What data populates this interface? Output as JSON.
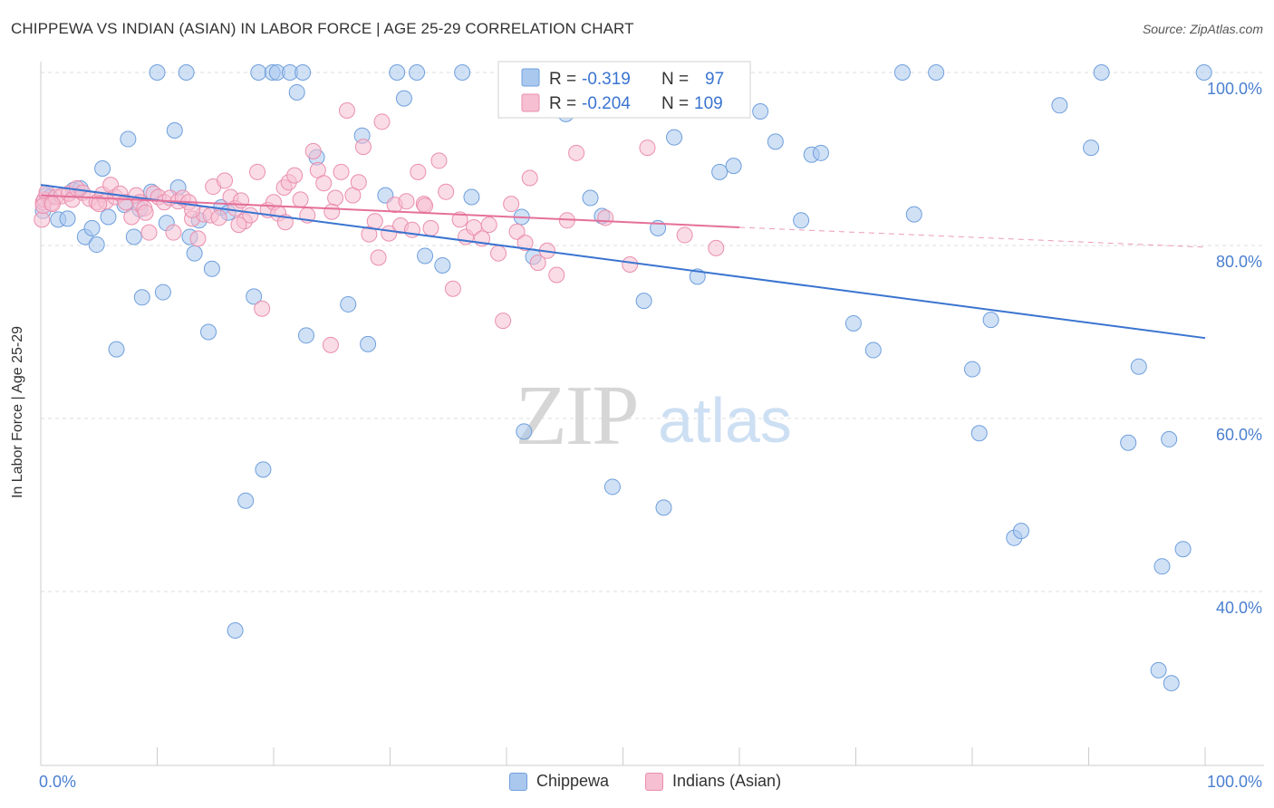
{
  "header": {
    "title": "CHIPPEWA VS INDIAN (ASIAN) IN LABOR FORCE | AGE 25-29 CORRELATION CHART",
    "source": "Source: ZipAtlas.com"
  },
  "watermark": {
    "zip": "ZIP",
    "atlas": "atlas"
  },
  "colors": {
    "blue_fill": "#aac8ee",
    "blue_stroke": "#6f9fdc",
    "blue_line": "#3a74d0",
    "pink_fill": "#f6bfd2",
    "pink_stroke": "#ea8fae",
    "pink_line": "#e5709a",
    "axis_text": "#4a7fd0",
    "grid": "#dddddd"
  },
  "chart_data": {
    "type": "scatter",
    "title": "CHIPPEWA VS INDIAN (ASIAN) IN LABOR FORCE | AGE 25-29 CORRELATION CHART",
    "ylabel": "In Labor Force | Age 25-29",
    "xlabel": "",
    "xlim": [
      0,
      100
    ],
    "ylim": [
      20,
      102
    ],
    "x_tick_labels": [
      "0.0%",
      "100.0%"
    ],
    "y_ticks": [
      {
        "value": 40,
        "label": "40.0%"
      },
      {
        "value": 60,
        "label": "60.0%"
      },
      {
        "value": 80,
        "label": "80.0%"
      },
      {
        "value": 100,
        "label": "100.0%"
      }
    ],
    "grid": "horizontal dashed",
    "legend_position": "top-center",
    "series": [
      {
        "name": "Chippewa",
        "color": "#aac8ee",
        "R": "-0.319",
        "N": "97",
        "trend": {
          "x0": 0,
          "y0": 87.0,
          "x1": 100,
          "y1": 69.3
        },
        "points": [
          [
            0.2,
            84.0
          ],
          [
            0.5,
            85.8
          ],
          [
            0.8,
            85.6
          ],
          [
            1.5,
            83.0
          ],
          [
            2.3,
            83.1
          ],
          [
            2.8,
            86.4
          ],
          [
            3.4,
            86.6
          ],
          [
            3.8,
            81.0
          ],
          [
            4.4,
            82.0
          ],
          [
            4.8,
            80.1
          ],
          [
            5.3,
            88.9
          ],
          [
            5.8,
            83.3
          ],
          [
            6.5,
            68.0
          ],
          [
            7.2,
            84.7
          ],
          [
            7.5,
            92.3
          ],
          [
            8.0,
            81.0
          ],
          [
            8.5,
            84.2
          ],
          [
            8.7,
            74.0
          ],
          [
            9.5,
            86.2
          ],
          [
            10.0,
            100.0
          ],
          [
            10.5,
            74.6
          ],
          [
            10.8,
            82.6
          ],
          [
            11.5,
            93.3
          ],
          [
            11.8,
            86.7
          ],
          [
            12.5,
            100.0
          ],
          [
            12.8,
            81.0
          ],
          [
            13.2,
            79.1
          ],
          [
            13.6,
            82.9
          ],
          [
            14.4,
            70.0
          ],
          [
            14.7,
            77.3
          ],
          [
            15.5,
            84.4
          ],
          [
            16.1,
            83.8
          ],
          [
            16.7,
            35.5
          ],
          [
            17.6,
            50.5
          ],
          [
            18.3,
            74.1
          ],
          [
            18.7,
            100.0
          ],
          [
            19.1,
            54.1
          ],
          [
            19.9,
            100.0
          ],
          [
            20.3,
            100.0
          ],
          [
            21.4,
            100.0
          ],
          [
            22.0,
            97.7
          ],
          [
            22.5,
            100.0
          ],
          [
            22.8,
            69.6
          ],
          [
            23.7,
            90.2
          ],
          [
            26.4,
            73.2
          ],
          [
            27.6,
            92.7
          ],
          [
            28.1,
            68.6
          ],
          [
            29.6,
            85.8
          ],
          [
            30.6,
            100.0
          ],
          [
            31.2,
            97.0
          ],
          [
            32.3,
            100.0
          ],
          [
            33.0,
            78.8
          ],
          [
            34.5,
            77.7
          ],
          [
            36.2,
            100.0
          ],
          [
            37.0,
            85.6
          ],
          [
            41.3,
            83.3
          ],
          [
            41.5,
            58.5
          ],
          [
            42.3,
            78.7
          ],
          [
            45.1,
            95.2
          ],
          [
            45.5,
            100.0
          ],
          [
            47.2,
            85.5
          ],
          [
            48.2,
            83.4
          ],
          [
            49.1,
            52.1
          ],
          [
            51.8,
            73.6
          ],
          [
            52.8,
            100.0
          ],
          [
            53.0,
            82.0
          ],
          [
            53.5,
            49.7
          ],
          [
            54.4,
            92.5
          ],
          [
            56.4,
            76.4
          ],
          [
            58.3,
            88.5
          ],
          [
            59.5,
            89.2
          ],
          [
            61.8,
            95.5
          ],
          [
            63.1,
            92.0
          ],
          [
            65.3,
            82.9
          ],
          [
            66.2,
            90.5
          ],
          [
            67.0,
            90.7
          ],
          [
            69.8,
            71.0
          ],
          [
            71.5,
            67.9
          ],
          [
            74.0,
            100.0
          ],
          [
            75.0,
            83.6
          ],
          [
            76.9,
            100.0
          ],
          [
            80.0,
            65.7
          ],
          [
            80.6,
            58.3
          ],
          [
            81.6,
            71.4
          ],
          [
            83.6,
            46.2
          ],
          [
            84.2,
            47.0
          ],
          [
            87.5,
            96.2
          ],
          [
            90.2,
            91.3
          ],
          [
            91.1,
            100.0
          ],
          [
            93.4,
            57.2
          ],
          [
            94.3,
            66.0
          ],
          [
            96.0,
            30.9
          ],
          [
            96.3,
            42.9
          ],
          [
            96.9,
            57.6
          ],
          [
            97.1,
            29.4
          ],
          [
            98.1,
            44.9
          ],
          [
            99.9,
            100.0
          ]
        ]
      },
      {
        "name": "Indians (Asian)",
        "color": "#f6bfd2",
        "R": "-0.204",
        "N": "109",
        "trend": {
          "x0": 0,
          "y0": 85.8,
          "x1": 60,
          "y1": 82.1,
          "dash_to_x": 100,
          "dash_to_y": 79.8
        },
        "points": [
          [
            0.1,
            83.0
          ],
          [
            0.2,
            85.0
          ],
          [
            0.3,
            85.3
          ],
          [
            0.5,
            86.1
          ],
          [
            0.9,
            84.9
          ],
          [
            1.3,
            85.6
          ],
          [
            1.8,
            85.7
          ],
          [
            2.4,
            86.0
          ],
          [
            2.7,
            85.3
          ],
          [
            3.1,
            86.6
          ],
          [
            3.6,
            86.1
          ],
          [
            4.2,
            85.4
          ],
          [
            4.8,
            85.0
          ],
          [
            5.3,
            85.9
          ],
          [
            5.6,
            85.1
          ],
          [
            6.0,
            87.0
          ],
          [
            6.4,
            85.6
          ],
          [
            6.8,
            86.0
          ],
          [
            7.3,
            85.0
          ],
          [
            7.8,
            83.3
          ],
          [
            8.2,
            85.8
          ],
          [
            8.5,
            85.0
          ],
          [
            8.9,
            84.3
          ],
          [
            9.3,
            81.5
          ],
          [
            9.7,
            86.0
          ],
          [
            10.1,
            85.6
          ],
          [
            10.6,
            85.0
          ],
          [
            11.1,
            85.5
          ],
          [
            11.4,
            81.5
          ],
          [
            11.8,
            85.1
          ],
          [
            12.2,
            85.5
          ],
          [
            12.7,
            85.0
          ],
          [
            13.0,
            83.1
          ],
          [
            13.5,
            80.8
          ],
          [
            14.0,
            83.6
          ],
          [
            14.6,
            83.5
          ],
          [
            14.8,
            86.8
          ],
          [
            15.3,
            83.2
          ],
          [
            15.8,
            87.5
          ],
          [
            16.3,
            85.6
          ],
          [
            16.7,
            84.3
          ],
          [
            17.2,
            85.2
          ],
          [
            17.5,
            82.8
          ],
          [
            18.0,
            83.5
          ],
          [
            18.6,
            88.5
          ],
          [
            19.0,
            72.7
          ],
          [
            19.5,
            84.1
          ],
          [
            20.0,
            85.0
          ],
          [
            20.4,
            83.7
          ],
          [
            20.9,
            86.7
          ],
          [
            21.3,
            87.3
          ],
          [
            21.8,
            88.1
          ],
          [
            22.3,
            85.3
          ],
          [
            22.9,
            83.5
          ],
          [
            23.4,
            90.9
          ],
          [
            23.8,
            88.7
          ],
          [
            24.3,
            87.2
          ],
          [
            24.9,
            68.5
          ],
          [
            25.3,
            85.5
          ],
          [
            25.8,
            88.5
          ],
          [
            26.3,
            95.6
          ],
          [
            26.8,
            85.8
          ],
          [
            27.3,
            87.3
          ],
          [
            27.7,
            91.4
          ],
          [
            28.2,
            81.3
          ],
          [
            28.7,
            82.8
          ],
          [
            29.3,
            94.3
          ],
          [
            29.9,
            81.4
          ],
          [
            30.4,
            84.7
          ],
          [
            30.9,
            82.3
          ],
          [
            31.4,
            85.1
          ],
          [
            31.9,
            81.8
          ],
          [
            32.4,
            88.5
          ],
          [
            32.9,
            84.8
          ],
          [
            33.5,
            82.0
          ],
          [
            34.2,
            89.8
          ],
          [
            34.8,
            86.2
          ],
          [
            35.4,
            75.0
          ],
          [
            36.0,
            83.0
          ],
          [
            36.5,
            81.0
          ],
          [
            37.2,
            82.1
          ],
          [
            37.9,
            80.8
          ],
          [
            38.5,
            82.4
          ],
          [
            39.3,
            79.1
          ],
          [
            39.7,
            71.3
          ],
          [
            40.4,
            84.8
          ],
          [
            40.9,
            81.6
          ],
          [
            41.6,
            80.3
          ],
          [
            42.0,
            87.8
          ],
          [
            42.7,
            78.0
          ],
          [
            43.5,
            79.4
          ],
          [
            44.3,
            76.6
          ],
          [
            45.2,
            82.9
          ],
          [
            46.0,
            90.7
          ],
          [
            48.5,
            83.2
          ],
          [
            50.6,
            77.8
          ],
          [
            52.1,
            91.3
          ],
          [
            55.3,
            81.2
          ],
          [
            58.0,
            79.7
          ],
          [
            0.2,
            84.6
          ],
          [
            1.0,
            84.8
          ],
          [
            5.0,
            84.8
          ],
          [
            9.0,
            83.8
          ],
          [
            13.0,
            84.1
          ],
          [
            17.0,
            82.4
          ],
          [
            21.0,
            82.7
          ],
          [
            25.0,
            83.9
          ],
          [
            29.0,
            78.6
          ],
          [
            33.0,
            84.6
          ]
        ]
      }
    ]
  },
  "legend": {
    "rows": [
      {
        "r_label": "R =",
        "r_value": "-0.319",
        "n_label": "N =",
        "n_value": "97"
      },
      {
        "r_label": "R =",
        "r_value": "-0.204",
        "n_label": "N =",
        "n_value": "109"
      }
    ]
  },
  "bottom_legend": [
    {
      "label": "Chippewa"
    },
    {
      "label": "Indians (Asian)"
    }
  ]
}
